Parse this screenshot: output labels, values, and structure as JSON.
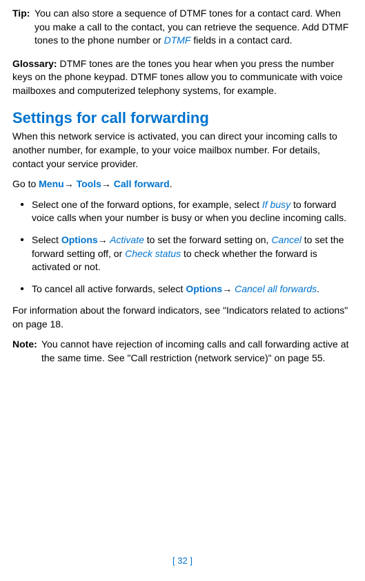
{
  "tip": {
    "label": "Tip:",
    "text_part1": "You can also store a sequence of DTMF tones for a contact card. When you make a call to the contact, you can retrieve the sequence. Add DTMF tones to the phone number or ",
    "dtmf_link": "DTMF",
    "text_part2": " fields in a contact card."
  },
  "glossary": {
    "label": "Glossary:",
    "text": " DTMF tones are the tones you hear when you press the number keys on the phone keypad. DTMF tones allow you to communicate with voice mailboxes and computerized telephony systems, for example."
  },
  "heading": "Settings for call forwarding",
  "intro": "When this network service is activated, you can direct your incoming calls to another number, for example, to your voice mailbox number. For details, contact your service provider.",
  "nav": {
    "prefix": "Go to ",
    "menu": "Menu",
    "tools": "Tools",
    "callforward": "Call forward",
    "arrow": "→"
  },
  "bullets": {
    "dot": "•",
    "item1": {
      "text1": "Select one of the forward options, for example, select ",
      "ifbusy": "If busy",
      "text2": " to forward voice calls when your number is busy or when you decline incoming calls."
    },
    "item2": {
      "text1": "Select ",
      "options": "Options",
      "arrow": "→",
      "activate": " Activate",
      "text2": " to set the forward setting on, ",
      "cancel": "Cancel",
      "text3": " to set the forward setting off, or ",
      "checkstatus": "Check status",
      "text4": " to check whether the forward is activated or not."
    },
    "item3": {
      "text1": "To cancel all active forwards, select ",
      "options": "Options",
      "arrow": "→",
      "cancelall": " Cancel all forwards",
      "period": "."
    }
  },
  "para_info": "For information about the forward indicators, see \"Indicators related to actions\" on page 18.",
  "note": {
    "label": "Note:",
    "text": "You cannot have rejection of incoming calls and call forwarding active at the same time. See \"Call restriction (network service)\" on page 55."
  },
  "page_num": "[ 32 ]"
}
